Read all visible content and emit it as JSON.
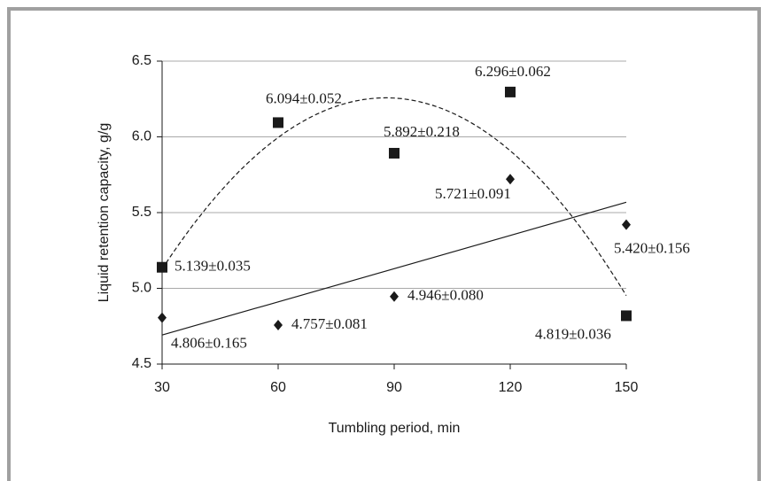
{
  "chart_data": {
    "type": "scatter",
    "x_label": "Tumbling period, min",
    "y_label": "Liquid retention capacity, g/g",
    "xlim": [
      30,
      150
    ],
    "xticks": [
      30,
      60,
      90,
      120,
      150
    ],
    "ylim": [
      4.5,
      6.5
    ],
    "yticks": [
      4.5,
      {
        "value": 5,
        "label": "5.0"
      },
      5.5,
      {
        "value": 6,
        "label": "6.0"
      },
      6.5
    ],
    "grid": true,
    "series": [
      {
        "marker": "square",
        "color": "#1a1a1a",
        "trendline": "polynomial",
        "x": [
          30,
          60,
          90,
          120,
          150
        ],
        "values": [
          5.139,
          6.094,
          5.892,
          6.296,
          4.819
        ],
        "value_labels": [
          "5.139±0.035",
          "6.094±0.052",
          "5.892±0.218",
          "6.296±0.062",
          "4.819±0.036"
        ]
      },
      {
        "marker": "diamond",
        "color": "#1a1a1a",
        "trendline": "linear",
        "x": [
          30,
          60,
          90,
          120,
          150
        ],
        "values": [
          4.806,
          4.757,
          4.946,
          5.721,
          5.42
        ],
        "value_labels": [
          "4.806±0.165",
          "4.757±0.081",
          "4.946±0.080",
          "5.721±0.091",
          "5.420±0.156"
        ]
      }
    ]
  }
}
